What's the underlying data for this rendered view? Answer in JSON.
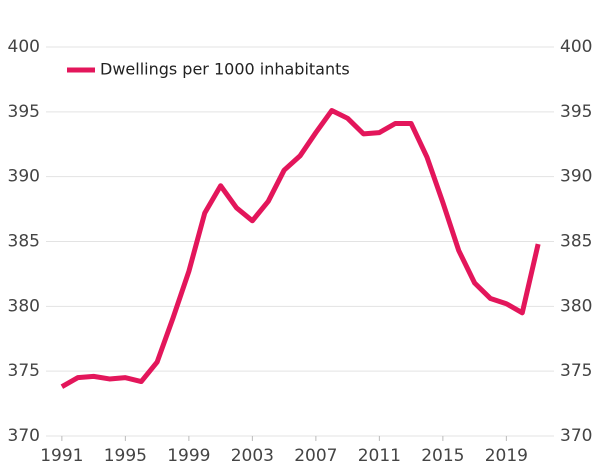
{
  "chart_data": {
    "type": "line",
    "x": [
      1991,
      1992,
      1993,
      1994,
      1995,
      1996,
      1997,
      1998,
      1999,
      2000,
      2001,
      2002,
      2003,
      2004,
      2005,
      2006,
      2007,
      2008,
      2009,
      2010,
      2011,
      2012,
      2013,
      2014,
      2015,
      2016,
      2017,
      2018,
      2019,
      2020,
      2021
    ],
    "series": [
      {
        "name": "Dwellings per 1000 inhabitants",
        "color": "#e3165b",
        "values": [
          373.8,
          374.5,
          374.6,
          374.4,
          374.5,
          374.2,
          375.7,
          379.1,
          382.7,
          387.2,
          389.3,
          387.6,
          386.6,
          388.1,
          390.5,
          391.6,
          393.4,
          395.1,
          394.5,
          393.3,
          393.4,
          394.1,
          394.1,
          391.5,
          388.0,
          384.3,
          381.8,
          380.6,
          380.2,
          379.5,
          384.8
        ]
      }
    ],
    "xlim": [
      1990,
      2022
    ],
    "xticks": [
      1991,
      1995,
      1999,
      2003,
      2007,
      2011,
      2015,
      2019
    ],
    "ylim": [
      370,
      400
    ],
    "yticks": [
      370,
      375,
      380,
      385,
      390,
      395,
      400
    ],
    "grid": true,
    "right_axis_labels": true,
    "legend": "upper-left"
  }
}
